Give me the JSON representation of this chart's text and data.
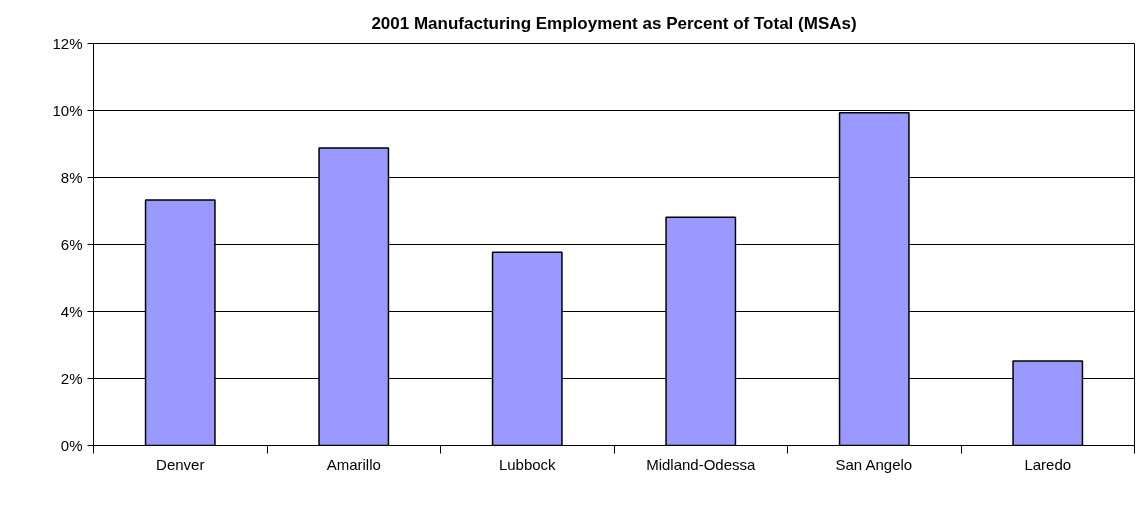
{
  "chart_data": {
    "type": "bar",
    "title": "2001 Manufacturing Employment as Percent of Total (MSAs)",
    "categories": [
      "Denver",
      "Amarillo",
      "Lubbock",
      "Midland-Odessa",
      "San Angelo",
      "Laredo"
    ],
    "values": [
      7.33,
      8.88,
      5.77,
      6.81,
      9.93,
      2.52
    ],
    "color": "#9999ff",
    "ylim": [
      0,
      12
    ],
    "yticks": [
      {
        "value": 0,
        "label": "0%"
      },
      {
        "value": 2,
        "label": "2%"
      },
      {
        "value": 4,
        "label": "4%"
      },
      {
        "value": 6,
        "label": "6%"
      },
      {
        "value": 8,
        "label": "8%"
      },
      {
        "value": 10,
        "label": "10%"
      },
      {
        "value": 12,
        "label": "12%"
      }
    ],
    "grid": "y"
  }
}
